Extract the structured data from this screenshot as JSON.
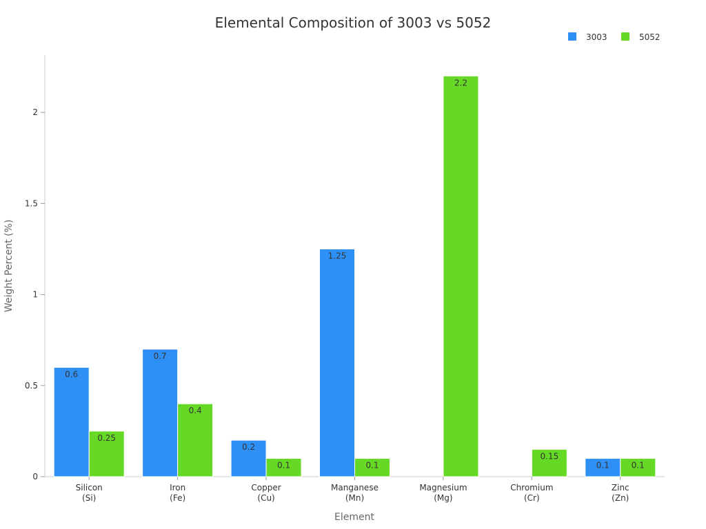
{
  "chart_data": {
    "type": "bar",
    "title": "Elemental Composition of 3003 vs 5052",
    "xlabel": "Element",
    "ylabel": "Weight Percent (%)",
    "ylim": [
      0,
      2.3
    ],
    "yticks": [
      0,
      0.5,
      1,
      1.5,
      2
    ],
    "ytick_labels": [
      "0",
      "0.5",
      "1",
      "1.5",
      "2"
    ],
    "categories": [
      [
        "Silicon",
        "(Si)"
      ],
      [
        "Iron",
        "(Fe)"
      ],
      [
        "Copper",
        "(Cu)"
      ],
      [
        "Manganese",
        "(Mn)"
      ],
      [
        "Magnesium",
        "(Mg)"
      ],
      [
        "Chromium",
        "(Cr)"
      ],
      [
        "Zinc",
        "(Zn)"
      ]
    ],
    "series": [
      {
        "name": "3003",
        "color": "#2e90f5",
        "values": [
          0.6,
          0.7,
          0.2,
          1.25,
          null,
          null,
          0.1
        ]
      },
      {
        "name": "5052",
        "color": "#66d926",
        "values": [
          0.25,
          0.4,
          0.1,
          0.1,
          2.2,
          0.15,
          0.1
        ]
      }
    ],
    "legend_position": "top-right",
    "grid": false
  }
}
